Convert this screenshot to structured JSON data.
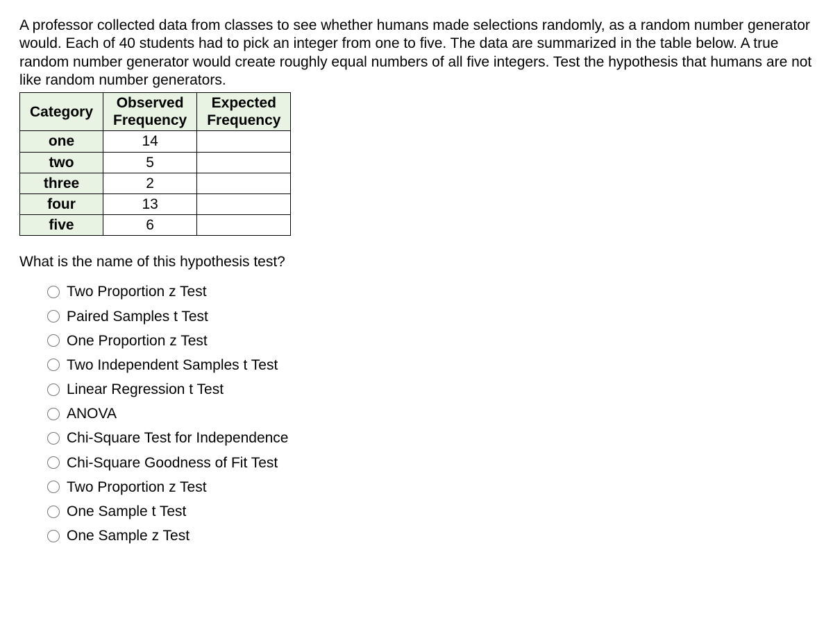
{
  "intro_text": "A professor collected data from classes to see whether humans made selections randomly, as a random number generator would. Each of 40 students had to pick an integer from one to five. The data are summarized in the table below. A true random number generator would create roughly equal numbers of all five integers. Test the hypothesis that humans are not like random number generators.",
  "table": {
    "header": {
      "category": "Category",
      "observed_line1": "Observed",
      "observed_line2": "Frequency",
      "expected_line1": "Expected",
      "expected_line2": "Frequency"
    },
    "rows": [
      {
        "category": "one",
        "observed": "14",
        "expected": ""
      },
      {
        "category": "two",
        "observed": "5",
        "expected": ""
      },
      {
        "category": "three",
        "observed": "2",
        "expected": ""
      },
      {
        "category": "four",
        "observed": "13",
        "expected": ""
      },
      {
        "category": "five",
        "observed": "6",
        "expected": ""
      }
    ]
  },
  "question_text": "What is the name of this hypothesis test?",
  "options": [
    "Two Proportion z Test",
    "Paired Samples t Test",
    "One Proportion z Test",
    "Two Independent Samples t Test",
    "Linear Regression t Test",
    "ANOVA",
    "Chi-Square Test for Independence",
    "Chi-Square Goodness of Fit Test",
    "Two Proportion z Test",
    "One Sample t Test",
    "One Sample z Test"
  ]
}
